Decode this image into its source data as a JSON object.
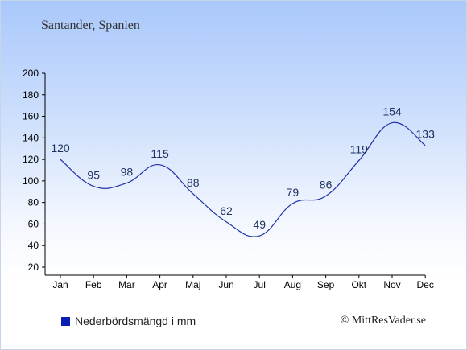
{
  "chart_data": {
    "type": "line",
    "title": "Santander, Spanien",
    "categories": [
      "Jan",
      "Feb",
      "Mar",
      "Apr",
      "Maj",
      "Jun",
      "Jul",
      "Aug",
      "Sep",
      "Okt",
      "Nov",
      "Dec"
    ],
    "values": [
      120,
      95,
      98,
      115,
      88,
      62,
      49,
      79,
      86,
      119,
      154,
      133
    ],
    "ylim": [
      20,
      200
    ],
    "yticks": [
      20,
      40,
      60,
      80,
      100,
      120,
      140,
      160,
      180,
      200
    ],
    "legend": "Nederbördsmängd i mm",
    "legend_color": "#0a1eb4",
    "line_color": "#2233aa"
  },
  "credit": "© MittResVader.se"
}
